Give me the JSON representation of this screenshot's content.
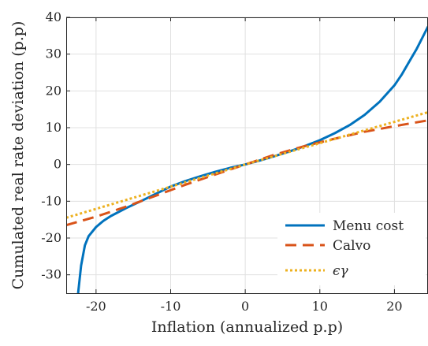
{
  "chart_data": {
    "type": "line",
    "title": "",
    "xlabel": "Inflation (annualized p.p)",
    "ylabel": "Cumulated real rate deviation (p.p)",
    "xlim": [
      -24,
      24.5
    ],
    "ylim": [
      -35,
      40
    ],
    "xticks": [
      -20,
      -10,
      0,
      10,
      20
    ],
    "yticks": [
      -30,
      -20,
      -10,
      0,
      10,
      20,
      30,
      40
    ],
    "xtick_labels": [
      "-20",
      "-10",
      "0",
      "10",
      "20"
    ],
    "ytick_labels": [
      "-30",
      "-20",
      "-10",
      "0",
      "10",
      "20",
      "30",
      "40"
    ],
    "grid": true,
    "legend": "bottom-right",
    "series": [
      {
        "name": "Menu cost",
        "color": "#0072BD",
        "style": "solid",
        "x": [
          -22.4,
          -22.0,
          -21.5,
          -21.0,
          -20.0,
          -19.0,
          -18.0,
          -16.0,
          -14.0,
          -12.0,
          -10.0,
          -8.0,
          -6.0,
          -4.0,
          -2.0,
          0.0,
          2.0,
          4.0,
          6.0,
          8.0,
          10.0,
          12.0,
          14.0,
          16.0,
          18.0,
          20.0,
          21.0,
          22.0,
          23.0,
          24.0,
          24.5
        ],
        "y": [
          -35.0,
          -27.5,
          -22.0,
          -19.5,
          -17.0,
          -15.3,
          -14.0,
          -11.9,
          -10.0,
          -8.0,
          -6.0,
          -4.5,
          -3.2,
          -2.0,
          -0.9,
          0.0,
          1.1,
          2.3,
          3.6,
          5.0,
          6.6,
          8.5,
          10.7,
          13.5,
          17.0,
          21.5,
          24.5,
          28.0,
          31.5,
          35.5,
          37.5
        ]
      },
      {
        "name": "Calvo",
        "color": "#D95319",
        "style": "dashed",
        "x": [
          -24.0,
          -20.0,
          -16.0,
          -12.0,
          -8.0,
          -4.0,
          0.0,
          4.0,
          8.0,
          12.0,
          16.0,
          20.0,
          24.5
        ],
        "y": [
          -16.5,
          -14.2,
          -11.5,
          -8.5,
          -5.5,
          -2.7,
          0.0,
          2.7,
          5.0,
          7.0,
          8.9,
          10.4,
          12.0
        ]
      },
      {
        "name": "ϵγ",
        "color": "#EDB120",
        "style": "dotted",
        "x": [
          -24.0,
          0.0,
          24.5
        ],
        "y": [
          -14.5,
          0.0,
          14.2
        ]
      }
    ]
  }
}
